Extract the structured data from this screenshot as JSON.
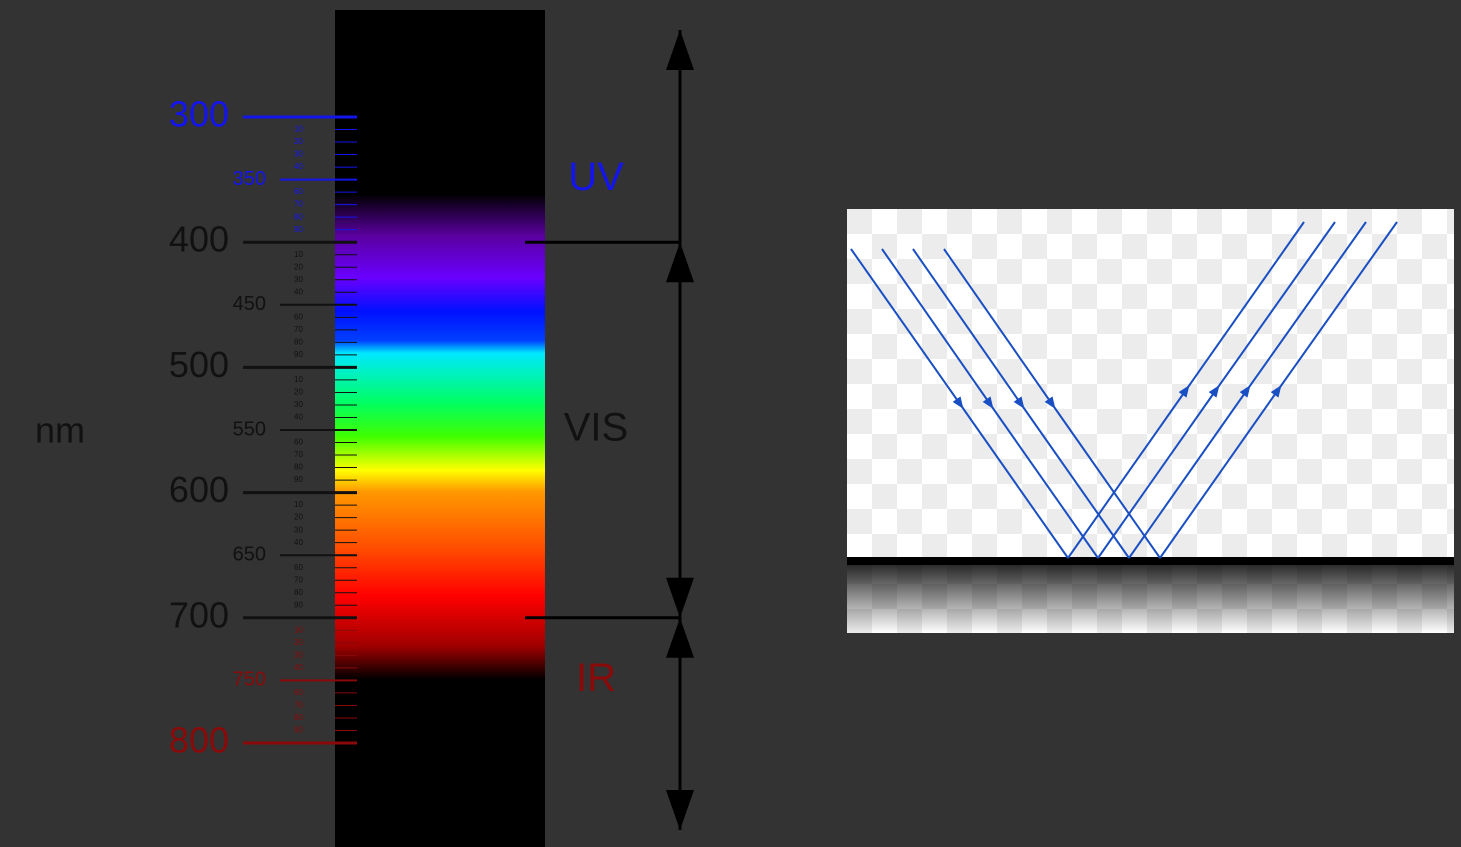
{
  "scale": {
    "unit": "nm",
    "range": [
      300,
      800
    ],
    "major": [
      300,
      400,
      500,
      600,
      700,
      800
    ],
    "mid": [
      350,
      450,
      550,
      650,
      750
    ],
    "minor": [
      10,
      20,
      30,
      40,
      60,
      70,
      80,
      90
    ]
  },
  "bands": [
    {
      "label": "UV",
      "from": 300,
      "to": 400,
      "color": "#1414ee"
    },
    {
      "label": "VIS",
      "from": 400,
      "to": 700,
      "color": "#111111"
    },
    {
      "label": "IR",
      "from": 700,
      "to": 800,
      "color": "#8a0a0a"
    }
  ]
}
